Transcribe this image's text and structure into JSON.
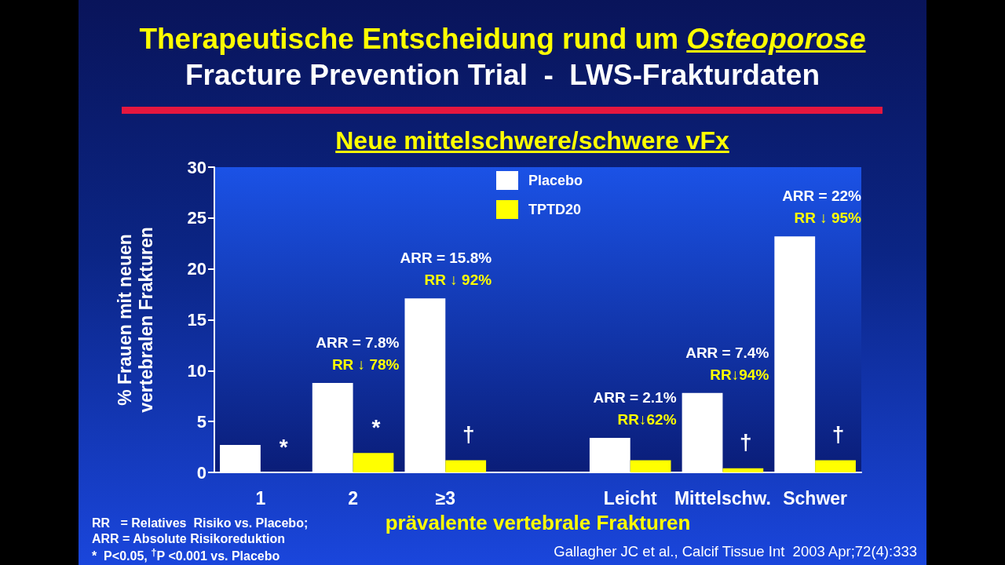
{
  "chart_data": {
    "type": "bar",
    "title": "Therapeutische Entscheidung rund um Osteoporose",
    "subtitle": "Fracture Prevention Trial  -  LWS-Frakturdaten",
    "xlabel": "prävalente vertebrale Frakturen",
    "ylabel": "% Frauen mit neuen\nvertebralen Frakturen",
    "categories": [
      "1",
      "2",
      "≥3",
      null,
      "Leicht",
      "Mittelschw.",
      "Schwer"
    ],
    "series": [
      {
        "name": "Placebo",
        "color": "#ffffff",
        "values": [
          2.7,
          8.8,
          17.1,
          null,
          3.4,
          7.8,
          23.2
        ]
      },
      {
        "name": "TPTD20",
        "color": "#ffff00",
        "values": [
          0,
          1.9,
          1.2,
          null,
          1.2,
          0.4,
          1.2
        ]
      }
    ],
    "ylim": [
      0,
      30
    ],
    "yticks": [
      0,
      5,
      10,
      15,
      20,
      25,
      30
    ],
    "legend": "top",
    "annotations": [
      "Neue mittelschwere/schwere vFx",
      "RR   = Relatives  Risiko vs. Placebo;",
      "ARR = Absolute Risikoreduktion",
      "*  P<0.05, $^{†}$P <0.001 vs. Placebo",
      "Gallagher JC et al., Calcif Tissue Int  2003 Apr;72(4):333",
      {
        "text": "*",
        "x": "1",
        "y": 0
      },
      {
        "text": "ARR = 7.8%\nRR ↓ 78%",
        "x": "2",
        "y": 8.8
      },
      {
        "text": "*",
        "x": "2",
        "y": 1.9
      },
      {
        "text": "ARR = 15.8%\nRR ↓ 92%",
        "x": "≥3",
        "y": 17.1
      },
      {
        "text": "†",
        "x": "≥3",
        "y": 1.2
      },
      {
        "text": "ARR = 2.1%\nRR↓62%",
        "x": "Leicht",
        "y": 3.4
      },
      {
        "text": "ARR = 7.4%\nRR↓94%",
        "x": "Mittelschw.",
        "y": 7.8
      },
      {
        "text": "†",
        "x": "Mittelschw.",
        "y": 0.4
      },
      {
        "text": "ARR = 22%\nRR ↓ 95%",
        "x": "Schwer",
        "y": 23.2
      },
      {
        "text": "†",
        "x": "Schwer",
        "y": 1.2
      }
    ]
  }
}
